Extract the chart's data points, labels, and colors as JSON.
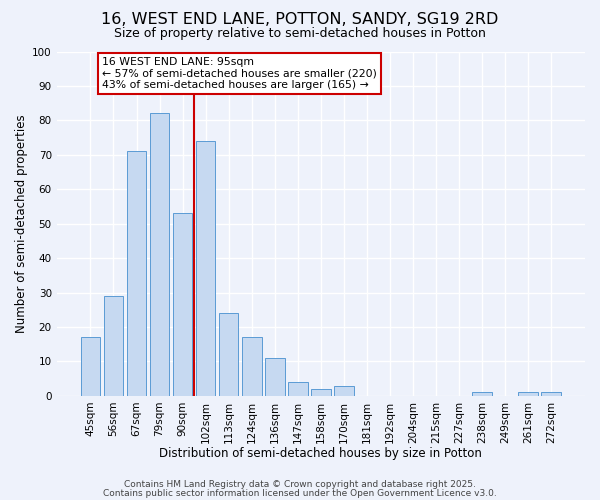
{
  "title": "16, WEST END LANE, POTTON, SANDY, SG19 2RD",
  "subtitle": "Size of property relative to semi-detached houses in Potton",
  "xlabel": "Distribution of semi-detached houses by size in Potton",
  "ylabel": "Number of semi-detached properties",
  "bar_labels": [
    "45sqm",
    "56sqm",
    "67sqm",
    "79sqm",
    "90sqm",
    "102sqm",
    "113sqm",
    "124sqm",
    "136sqm",
    "147sqm",
    "158sqm",
    "170sqm",
    "181sqm",
    "192sqm",
    "204sqm",
    "215sqm",
    "227sqm",
    "238sqm",
    "249sqm",
    "261sqm",
    "272sqm"
  ],
  "bar_values": [
    17,
    29,
    71,
    82,
    53,
    74,
    24,
    17,
    11,
    4,
    2,
    3,
    0,
    0,
    0,
    0,
    0,
    1,
    0,
    1,
    1
  ],
  "bar_color": "#c6d9f1",
  "bar_edge_color": "#5b9bd5",
  "vline_x_index": 4.5,
  "vline_color": "#cc0000",
  "annotation_title": "16 WEST END LANE: 95sqm",
  "annotation_line1": "← 57% of semi-detached houses are smaller (220)",
  "annotation_line2": "43% of semi-detached houses are larger (165) →",
  "annotation_box_color": "#ffffff",
  "annotation_box_edge": "#cc0000",
  "ylim": [
    0,
    100
  ],
  "yticks": [
    0,
    10,
    20,
    30,
    40,
    50,
    60,
    70,
    80,
    90,
    100
  ],
  "footnote1": "Contains HM Land Registry data © Crown copyright and database right 2025.",
  "footnote2": "Contains public sector information licensed under the Open Government Licence v3.0.",
  "background_color": "#eef2fb",
  "grid_color": "#ffffff",
  "title_fontsize": 11.5,
  "subtitle_fontsize": 9,
  "axis_label_fontsize": 8.5,
  "tick_fontsize": 7.5,
  "annotation_fontsize": 7.8,
  "footnote_fontsize": 6.5
}
